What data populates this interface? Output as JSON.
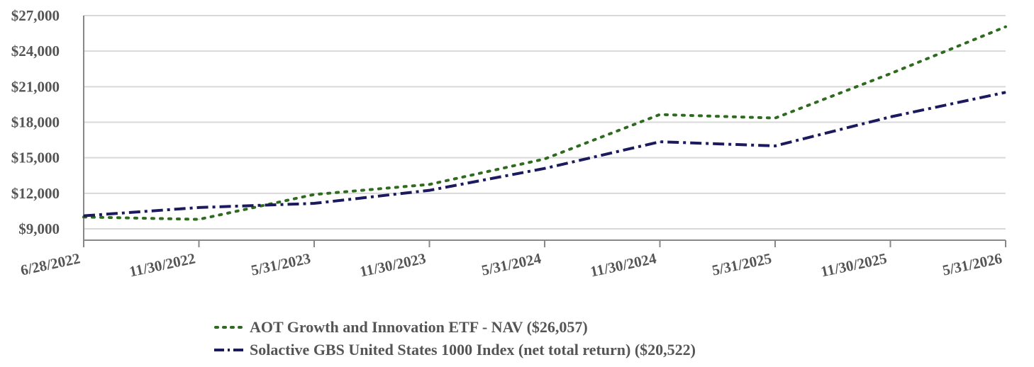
{
  "chart_data": {
    "type": "line",
    "x": [
      "6/28/2022",
      "11/30/2022",
      "5/31/2023",
      "11/30/2023",
      "5/31/2024",
      "11/30/2024",
      "5/31/2025",
      "11/30/2025",
      "5/31/2026"
    ],
    "xtick_labels": [
      "6/28/2022",
      "11/30/2022",
      "5/31/2023",
      "11/30/2023",
      "5/31/2024",
      "11/30/2024",
      "5/31/2025",
      "11/30/2025",
      "5/31/2026"
    ],
    "ylim": [
      9000,
      27000
    ],
    "yticks": [
      9000,
      12000,
      15000,
      18000,
      21000,
      24000,
      27000
    ],
    "ytick_labels": [
      "$9,000",
      "$12,000",
      "$15,000",
      "$18,000",
      "$21,000",
      "$24,000",
      "$27,000"
    ],
    "grid": true,
    "legend_position": "bottom",
    "series": [
      {
        "name": "AOT Growth and Innovation ETF - NAV ($26,057)",
        "color": "#2e6b1f",
        "style": "dotted",
        "values": [
          10000,
          9800,
          11900,
          12750,
          14900,
          18650,
          18350,
          22100,
          26057
        ]
      },
      {
        "name": "Solactive GBS United States 1000 Index (net total return) ($20,522)",
        "color": "#1b1a5e",
        "style": "dash-dot",
        "values": [
          10100,
          10800,
          11150,
          12250,
          14100,
          16350,
          16000,
          18450,
          20522
        ]
      }
    ]
  }
}
